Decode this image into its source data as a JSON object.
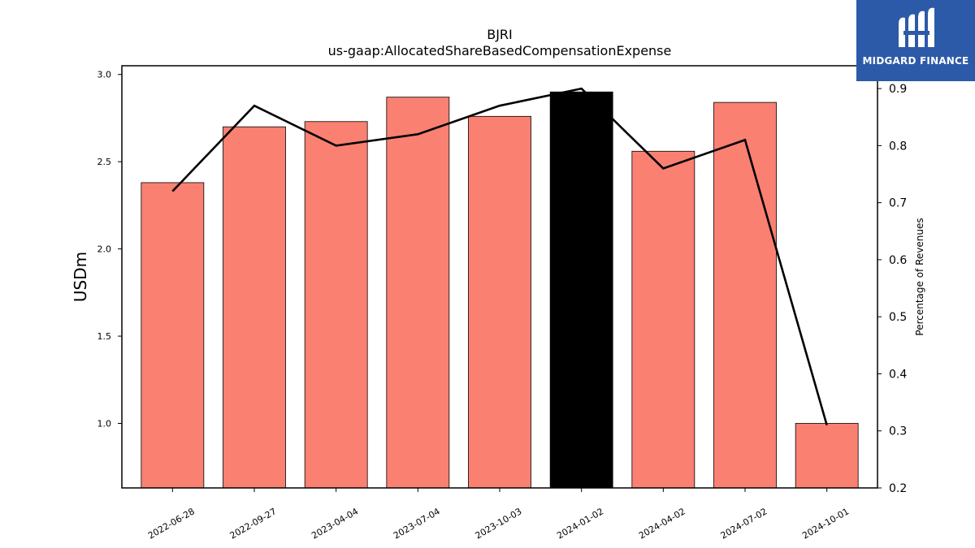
{
  "chart_data": {
    "type": "bar",
    "title": "BJRI",
    "subtitle": "us-gaap:AllocatedShareBasedCompensationExpense",
    "ylabel": "USDm",
    "y2label": "Percentage of Revenues",
    "categories": [
      "2022-06-28",
      "2022-09-27",
      "2023-04-04",
      "2023-07-04",
      "2023-10-03",
      "2024-01-02",
      "2024-04-02",
      "2024-07-02",
      "2024-10-01"
    ],
    "bar_values": [
      2.38,
      2.7,
      2.73,
      2.87,
      2.76,
      2.9,
      2.56,
      2.84,
      1.0
    ],
    "highlight_index": 5,
    "line_values": [
      0.72,
      0.87,
      0.8,
      0.82,
      0.87,
      0.9,
      0.76,
      0.81,
      0.31
    ],
    "ylim": [
      0.63,
      3.05
    ],
    "y2lim": [
      0.2,
      0.94
    ],
    "yticks": [
      "1.0",
      "1.5",
      "2.0",
      "2.5",
      "3.0"
    ],
    "y2ticks": [
      "0.2",
      "0.3",
      "0.4",
      "0.5",
      "0.6",
      "0.7",
      "0.8",
      "0.9"
    ],
    "bar_color": "#fa8072",
    "highlight_color": "#000000",
    "line_color": "#000000",
    "grid": false
  },
  "logo": {
    "text": "MIDGARD FINANCE",
    "color": "#2c5aa8"
  }
}
